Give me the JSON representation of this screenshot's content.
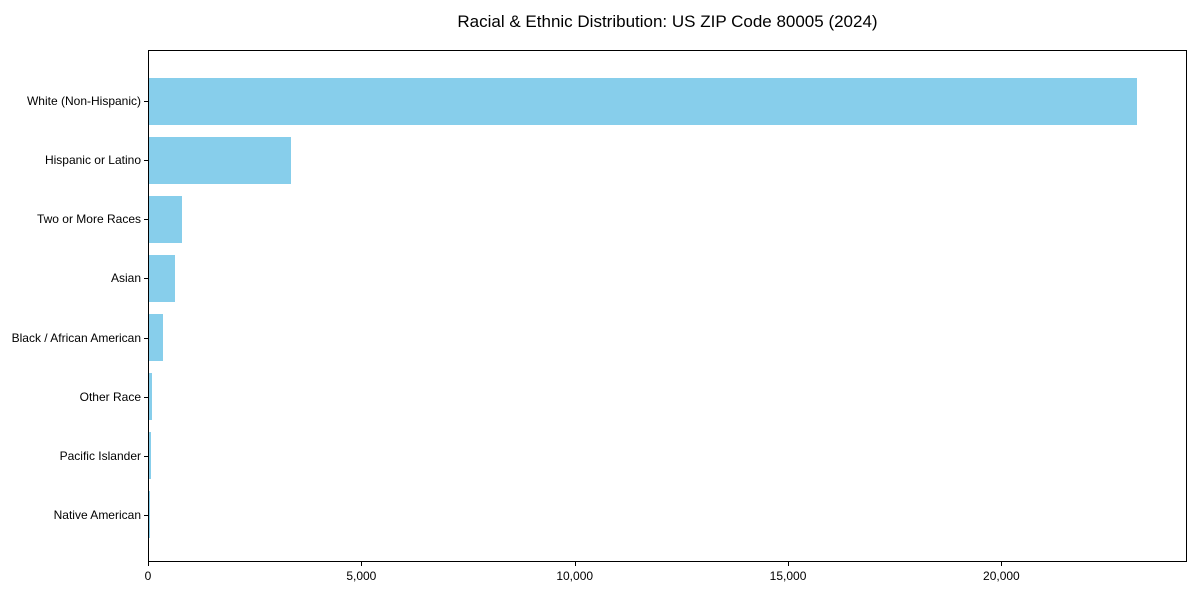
{
  "title": "Racial & Ethnic Distribution: US ZIP Code 80005 (2024)",
  "colors": {
    "bar": "#87CEEB",
    "axis": "#000000",
    "text": "#000000",
    "background": "#ffffff"
  },
  "chart_data": {
    "type": "bar",
    "orientation": "horizontal",
    "title": "Racial & Ethnic Distribution: US ZIP Code 80005 (2024)",
    "categories": [
      "White (Non-Hispanic)",
      "Hispanic or Latino",
      "Two or More Races",
      "Asian",
      "Black / African American",
      "Other Race",
      "Pacific Islander",
      "Native American"
    ],
    "values": [
      23160,
      3320,
      770,
      610,
      320,
      60,
      50,
      15
    ],
    "xlabel": "",
    "ylabel": "",
    "xlim": [
      0,
      24350
    ],
    "xticks": [
      0,
      5000,
      10000,
      15000,
      20000
    ],
    "xtick_labels": [
      "0",
      "5,000",
      "10,000",
      "15,000",
      "20,000"
    ],
    "bar_color": "#87CEEB",
    "grid": false,
    "legend": null
  }
}
